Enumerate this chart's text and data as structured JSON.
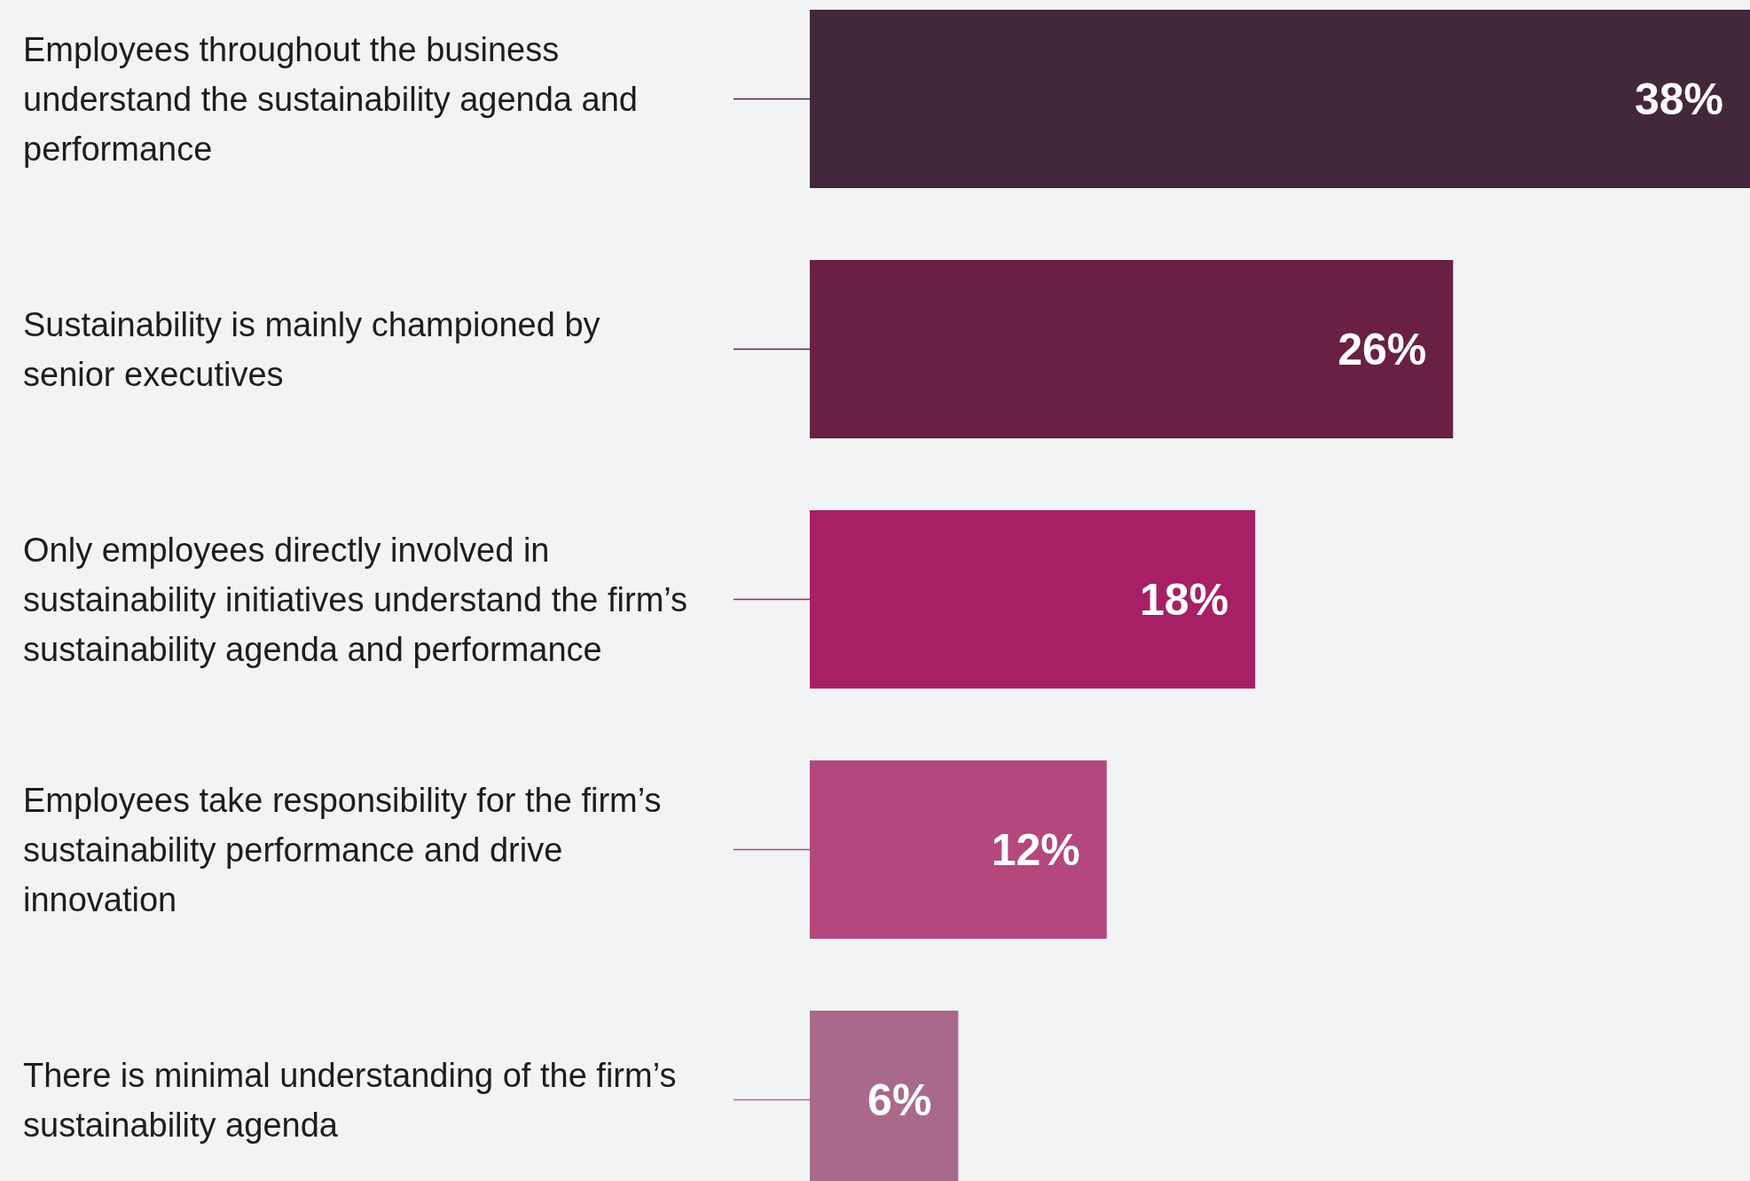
{
  "chart_data": {
    "type": "bar",
    "orientation": "horizontal",
    "categories": [
      "Employees throughout the business understand the sustainability agenda and performance",
      "Sustainability is mainly championed by senior executives",
      "Only employees directly involved in sustainability initiatives understand the firm’s sustainability agenda and performance",
      "Employees take responsibility for the firm’s sustainability performance and drive innovation",
      "There is minimal understanding of the firm’s sustainability agenda"
    ],
    "values": [
      38,
      26,
      18,
      12,
      6
    ],
    "colors": [
      "#43273b",
      "#692044",
      "#a71f65",
      "#b3477e",
      "#a8698c"
    ],
    "value_labels": [
      "38%",
      "26%",
      "18%",
      "12%",
      "6%"
    ]
  }
}
